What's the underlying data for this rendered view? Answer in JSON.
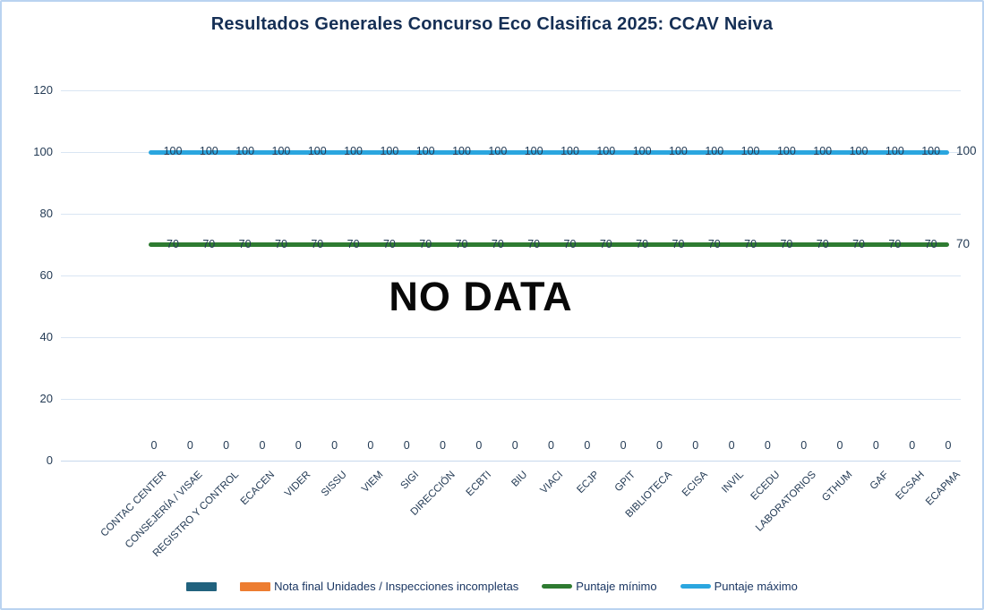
{
  "title": "Resultados Generales Concurso Eco Clasifica 2025: CCAV Neiva",
  "chart_data": {
    "type": "combo-bar-line",
    "title": "Resultados Generales Concurso Eco Clasifica 2025: CCAV Neiva",
    "annotation": "NO DATA",
    "categories": [
      "CONTAC CENTER",
      "CONSEJERÍA / VISAE",
      "REGISTRO Y CONTROL",
      "ECACEN",
      "VIDER",
      "SISSU",
      "VIEM",
      "SIGI",
      "DIRECCIÓN",
      "ECBTI",
      "BIU",
      "VIACI",
      "ECJP",
      "GPIT",
      "BIBLIOTECA",
      "ECISA",
      "INVIL",
      "ECEDU",
      "LABORATORIOS",
      "GTHUM",
      "GAF",
      "ECSAH",
      "ECAPMA"
    ],
    "series": [
      {
        "name": "",
        "type": "bar",
        "color": "#21627E",
        "values": [
          0,
          0,
          0,
          0,
          0,
          0,
          0,
          0,
          0,
          0,
          0,
          0,
          0,
          0,
          0,
          0,
          0,
          0,
          0,
          0,
          0,
          0,
          0
        ],
        "show_labels": false
      },
      {
        "name": "Nota final Unidades / Inspecciones incompletas",
        "type": "bar",
        "color": "#ED7D31",
        "values": [
          0,
          0,
          0,
          0,
          0,
          0,
          0,
          0,
          0,
          0,
          0,
          0,
          0,
          0,
          0,
          0,
          0,
          0,
          0,
          0,
          0,
          0,
          0
        ],
        "show_labels": true
      },
      {
        "name": "Puntaje mínimo",
        "type": "line",
        "color": "#2E7B31",
        "values": [
          70,
          70,
          70,
          70,
          70,
          70,
          70,
          70,
          70,
          70,
          70,
          70,
          70,
          70,
          70,
          70,
          70,
          70,
          70,
          70,
          70,
          70,
          70
        ],
        "show_labels": true
      },
      {
        "name": "Puntaje máximo",
        "type": "line",
        "color": "#2BA6DF",
        "values": [
          100,
          100,
          100,
          100,
          100,
          100,
          100,
          100,
          100,
          100,
          100,
          100,
          100,
          100,
          100,
          100,
          100,
          100,
          100,
          100,
          100,
          100,
          100
        ],
        "show_labels": true
      }
    ],
    "ylim": [
      0,
      120
    ],
    "yticks": [
      0,
      20,
      40,
      60,
      80,
      100,
      120
    ],
    "grid": true,
    "legend_position": "bottom",
    "x_tick_rotation_deg": 45
  },
  "colors": {
    "title_text": "#152F55",
    "axis_text": "#243B55",
    "gridline": "#D9E5F3",
    "chart_border": "#BAD3F0",
    "no_data_text": "#080808",
    "bar_series_1": "#21627E",
    "bar_series_2": "#ED7D31",
    "line_min": "#2E7B31",
    "line_max": "#2BA6DF"
  }
}
